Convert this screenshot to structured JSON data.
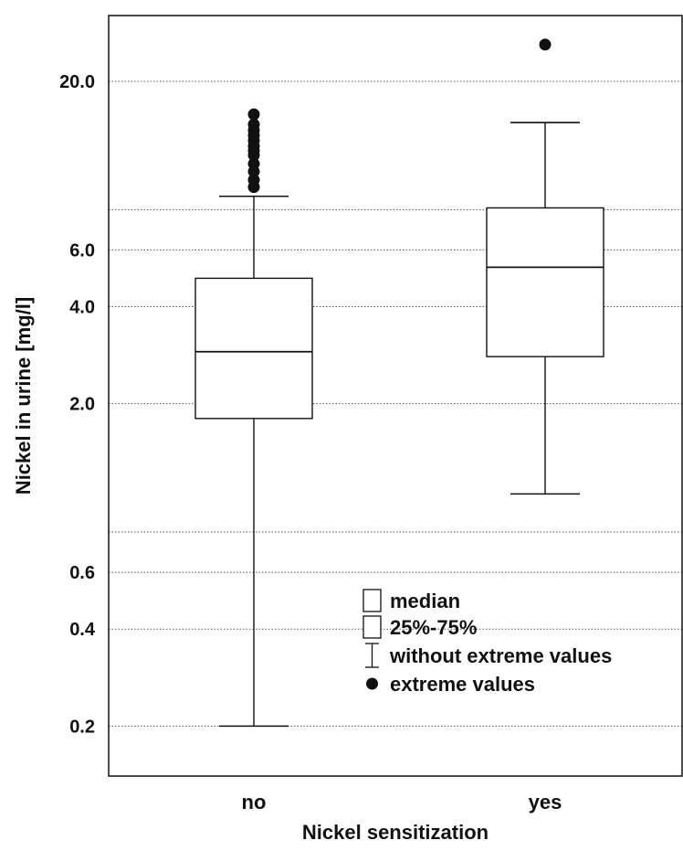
{
  "chart_data": {
    "type": "boxplot",
    "title": "",
    "xlabel": "Nickel sensitization",
    "ylabel": "Nickel in urine [mg/l]",
    "yscale": "log",
    "ylim": [
      0.14,
      32
    ],
    "yticks": [
      {
        "value": 0.2,
        "label": "0.2"
      },
      {
        "value": 0.4,
        "label": "0.4"
      },
      {
        "value": 0.6,
        "label": "0.6"
      },
      {
        "value": 2.0,
        "label": "2.0"
      },
      {
        "value": 4.0,
        "label": "4.0"
      },
      {
        "value": 6.0,
        "label": "6.0"
      },
      {
        "value": 20.0,
        "label": "20.0"
      }
    ],
    "gridlines": [
      0.2,
      0.4,
      0.6,
      0.8,
      2.0,
      4.0,
      6.0,
      8.0,
      20.0
    ],
    "grid": true,
    "categories": [
      "no",
      "yes"
    ],
    "boxes": [
      {
        "category": "no",
        "whisker_low": 0.2,
        "q1": 1.8,
        "median": 2.9,
        "q3": 4.9,
        "whisker_high": 8.8,
        "extremes": [
          9.4,
          9.9,
          10.5,
          11.1,
          11.8,
          12.2,
          12.6,
          13.1,
          13.6,
          14.1,
          14.7,
          15.8
        ]
      },
      {
        "category": "yes",
        "whisker_low": 1.05,
        "q1": 2.8,
        "median": 5.3,
        "q3": 8.1,
        "whisker_high": 14.9,
        "extremes": [
          26.0
        ]
      }
    ],
    "legend": {
      "position": "lower-right",
      "entries": [
        {
          "symbol": "box",
          "label": "median"
        },
        {
          "symbol": "box",
          "label": "25%-75%"
        },
        {
          "symbol": "whisker",
          "label": "without extreme values"
        },
        {
          "symbol": "dot",
          "label": "extreme values"
        }
      ]
    },
    "colors": {
      "ink": "#111111",
      "grid": "#555555",
      "background": "#ffffff"
    }
  }
}
